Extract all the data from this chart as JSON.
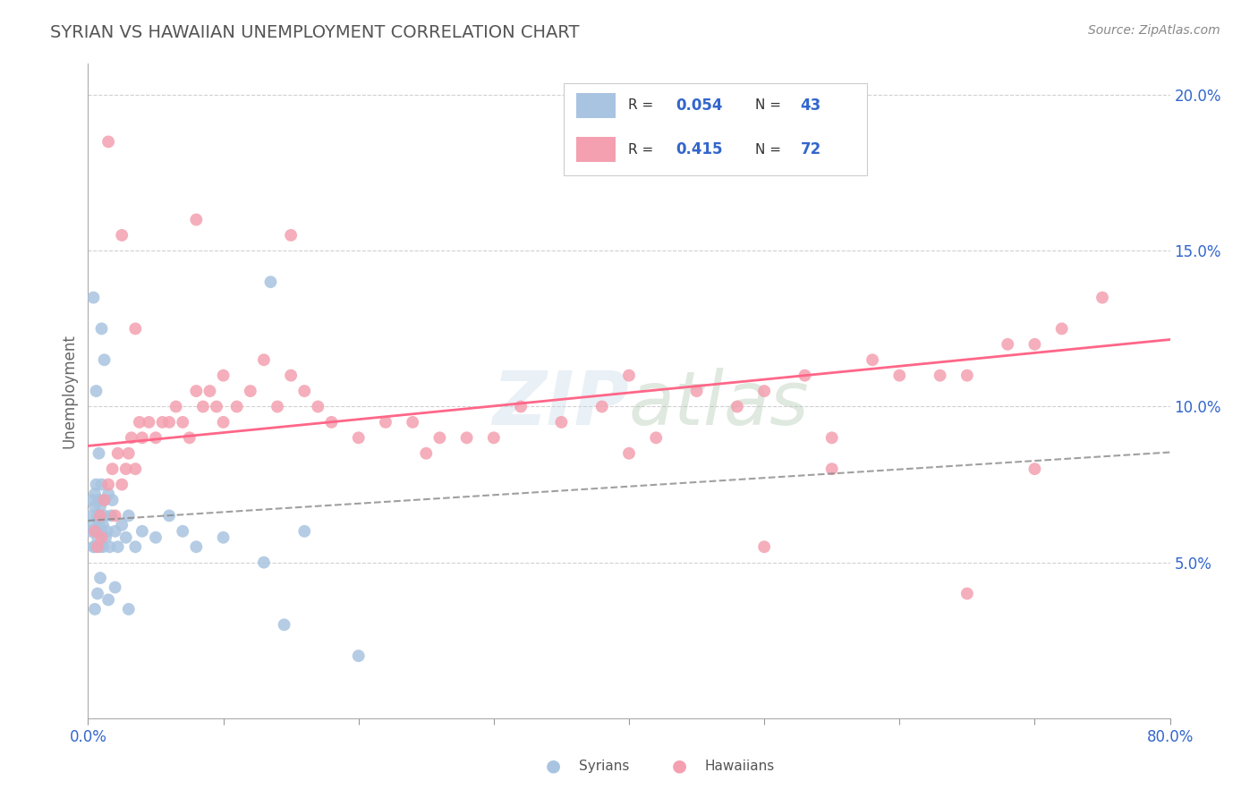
{
  "title": "SYRIAN VS HAWAIIAN UNEMPLOYMENT CORRELATION CHART",
  "source_text": "Source: ZipAtlas.com",
  "ylabel": "Unemployment",
  "syrians_R": 0.054,
  "syrians_N": 43,
  "hawaiians_R": 0.415,
  "hawaiians_N": 72,
  "watermark": "ZIPatlas",
  "background_color": "#ffffff",
  "plot_bg_color": "#ffffff",
  "grid_color": "#cccccc",
  "syrians_color": "#a8c4e0",
  "hawaiians_color": "#f4a0b0",
  "syrians_line_color": "#888888",
  "hawaiians_line_color": "#ff6688",
  "syrians_x": [
    0.2,
    0.3,
    0.3,
    0.4,
    0.4,
    0.5,
    0.5,
    0.5,
    0.6,
    0.6,
    0.7,
    0.7,
    0.8,
    0.8,
    0.9,
    0.9,
    1.0,
    1.0,
    1.1,
    1.1,
    1.2,
    1.2,
    1.3,
    1.4,
    1.5,
    1.6,
    1.7,
    1.8,
    2.0,
    2.2,
    2.5,
    2.8,
    3.0,
    3.5,
    4.0,
    5.0,
    6.0,
    7.0,
    8.0,
    10.0,
    13.0,
    16.0,
    20.0
  ],
  "syrians_y": [
    6.0,
    6.5,
    7.0,
    5.5,
    6.2,
    6.8,
    5.5,
    7.2,
    6.0,
    7.5,
    5.8,
    6.5,
    6.2,
    7.0,
    5.5,
    6.8,
    6.0,
    7.5,
    5.5,
    6.2,
    6.5,
    7.0,
    5.8,
    6.0,
    7.2,
    5.5,
    6.5,
    7.0,
    6.0,
    5.5,
    6.2,
    5.8,
    6.5,
    5.5,
    6.0,
    5.8,
    6.5,
    6.0,
    5.5,
    5.8,
    5.0,
    6.0,
    2.0
  ],
  "syrians_extra_x": [
    0.4,
    0.6,
    0.8,
    1.0,
    1.2,
    0.5,
    0.7,
    0.9,
    1.5,
    2.0,
    3.0,
    13.5,
    14.5
  ],
  "syrians_extra_y": [
    13.5,
    10.5,
    8.5,
    12.5,
    11.5,
    3.5,
    4.0,
    4.5,
    3.8,
    4.2,
    3.5,
    14.0,
    3.0
  ],
  "hawaiians_x": [
    0.5,
    0.7,
    0.9,
    1.0,
    1.2,
    1.5,
    1.8,
    2.0,
    2.2,
    2.5,
    2.8,
    3.0,
    3.2,
    3.5,
    3.8,
    4.0,
    4.5,
    5.0,
    5.5,
    6.0,
    6.5,
    7.0,
    7.5,
    8.0,
    8.5,
    9.0,
    9.5,
    10.0,
    11.0,
    12.0,
    13.0,
    14.0,
    15.0,
    16.0,
    17.0,
    18.0,
    20.0,
    22.0,
    24.0,
    26.0,
    28.0,
    30.0,
    32.0,
    35.0,
    38.0,
    40.0,
    42.0,
    45.0,
    48.0,
    50.0,
    53.0,
    55.0,
    58.0,
    60.0,
    63.0,
    65.0,
    68.0,
    70.0,
    72.0,
    75.0,
    1.5,
    2.5,
    3.5,
    8.0,
    15.0,
    40.0,
    55.0,
    70.0,
    10.0,
    25.0,
    50.0,
    65.0
  ],
  "hawaiians_y": [
    6.0,
    5.5,
    6.5,
    5.8,
    7.0,
    7.5,
    8.0,
    6.5,
    8.5,
    7.5,
    8.0,
    8.5,
    9.0,
    8.0,
    9.5,
    9.0,
    9.5,
    9.0,
    9.5,
    9.5,
    10.0,
    9.5,
    9.0,
    10.5,
    10.0,
    10.5,
    10.0,
    11.0,
    10.0,
    10.5,
    11.5,
    10.0,
    11.0,
    10.5,
    10.0,
    9.5,
    9.0,
    9.5,
    9.5,
    9.0,
    9.0,
    9.0,
    10.0,
    9.5,
    10.0,
    11.0,
    9.0,
    10.5,
    10.0,
    10.5,
    11.0,
    9.0,
    11.5,
    11.0,
    11.0,
    11.0,
    12.0,
    12.0,
    12.5,
    13.5,
    18.5,
    15.5,
    12.5,
    16.0,
    15.5,
    8.5,
    8.0,
    8.0,
    9.5,
    8.5,
    5.5,
    4.0
  ],
  "xlim": [
    0,
    80
  ],
  "ylim": [
    0,
    21
  ],
  "ytick_positions": [
    5,
    10,
    15,
    20
  ],
  "ytick_labels": [
    "5.0%",
    "10.0%",
    "15.0%",
    "20.0%"
  ],
  "xtick_positions": [
    0,
    10,
    20,
    30,
    40,
    50,
    60,
    70,
    80
  ],
  "xtick_labels_bottom": [
    "0.0%",
    "",
    "",
    "",
    "",
    "",
    "",
    "",
    "80.0%"
  ]
}
